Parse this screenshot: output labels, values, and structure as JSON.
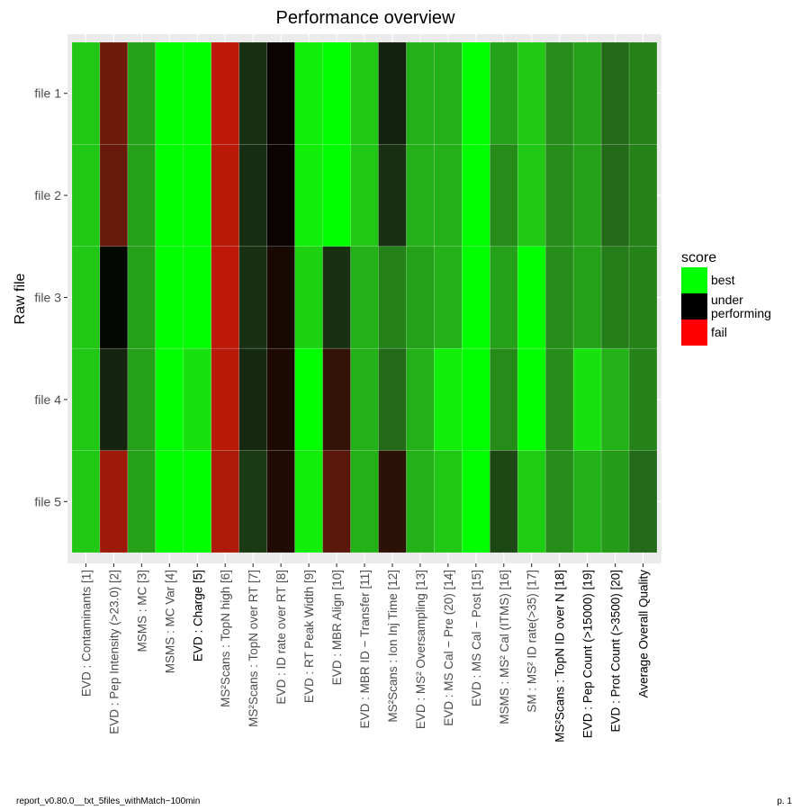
{
  "chart_data": {
    "type": "heatmap",
    "title": "Performance overview",
    "xlabel": "",
    "ylabel": "Raw file",
    "rows": [
      "file 1",
      "file 2",
      "file 3",
      "file 4",
      "file 5"
    ],
    "columns": [
      "EVD : Contaminants [1]",
      "EVD : Pep Intensity (>23.0) [2]",
      "MSMS : MC [3]",
      "MSMS : MC Var [4]",
      "EVD : Charge [5]",
      "MS²Scans : TopN high [6]",
      "MS²Scans : TopN over RT [7]",
      "EVD : ID rate over RT [8]",
      "EVD : RT Peak Width [9]",
      "EVD : MBR Align [10]",
      "EVD : MBR ID − Transfer [11]",
      "MS²Scans : Ion Inj Time [12]",
      "EVD : MS² Oversampling [13]",
      "EVD : MS Cal − Pre (20) [14]",
      "EVD : MS Cal − Post [15]",
      "MSMS : MS² Cal (ITMS) [16]",
      "SM : MS² ID rate(>35) [17]",
      "MS²Scans : TopN ID over N [18]",
      "EVD : Pep Count (>15000) [19]",
      "EVD : Prot Count (>3500) [20]",
      "Average Overall Quality"
    ],
    "highlighted_columns": [
      5,
      18,
      19,
      20
    ],
    "values": [
      [
        0.9,
        0.27,
        0.83,
        1.0,
        1.0,
        0.12,
        0.6,
        0.49,
        0.97,
        1.0,
        0.9,
        0.56,
        0.86,
        0.86,
        1.0,
        0.83,
        0.9,
        0.79,
        0.83,
        0.72,
        0.77
      ],
      [
        0.9,
        0.29,
        0.83,
        1.0,
        1.0,
        0.13,
        0.59,
        0.49,
        0.97,
        1.0,
        0.9,
        0.6,
        0.86,
        0.86,
        1.0,
        0.79,
        0.9,
        0.79,
        0.83,
        0.72,
        0.77
      ],
      [
        0.9,
        0.51,
        0.83,
        1.0,
        1.0,
        0.12,
        0.6,
        0.47,
        0.92,
        0.6,
        0.86,
        0.77,
        0.83,
        0.86,
        1.0,
        0.83,
        1.0,
        0.79,
        0.83,
        0.76,
        0.77
      ],
      [
        0.9,
        0.57,
        0.83,
        1.0,
        0.95,
        0.13,
        0.58,
        0.46,
        1.0,
        0.4,
        0.86,
        0.72,
        0.86,
        0.97,
        1.0,
        0.79,
        1.0,
        0.79,
        0.95,
        0.86,
        0.77
      ],
      [
        0.9,
        0.18,
        0.83,
        1.0,
        1.0,
        0.15,
        0.62,
        0.45,
        0.97,
        0.32,
        0.86,
        0.42,
        0.86,
        0.9,
        1.0,
        0.65,
        0.91,
        0.79,
        0.86,
        0.82,
        0.72
      ]
    ],
    "color_scale": {
      "fail": "#ff0000",
      "under_performing": "#000000",
      "best": "#00ff00"
    },
    "legend": {
      "title": "score",
      "position": "right",
      "entries": [
        {
          "label": "best",
          "color": "#00ff00"
        },
        {
          "label": "under\nperforming",
          "color": "#000000"
        },
        {
          "label": "fail",
          "color": "#ff0000"
        }
      ]
    },
    "grid": true
  },
  "footer": {
    "left": "report_v0.80.0__txt_5files_withMatch−100min",
    "right": "p. 1"
  }
}
